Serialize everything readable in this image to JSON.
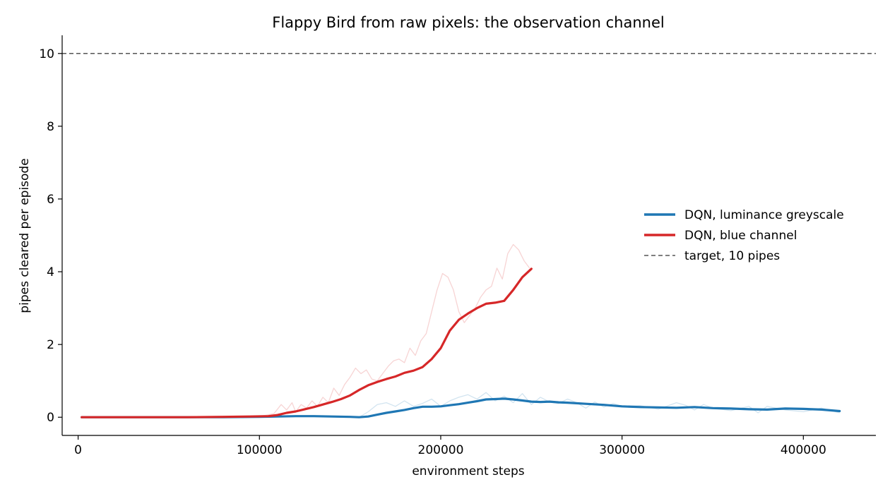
{
  "chart_data": {
    "type": "line",
    "title": "Flappy Bird from raw pixels: the observation channel",
    "xlabel": "environment steps",
    "ylabel": "pipes cleared per episode",
    "xlim": [
      -8800,
      440000
    ],
    "ylim": [
      -0.5,
      10.5
    ],
    "xticks": [
      0,
      100000,
      200000,
      300000,
      400000
    ],
    "yticks": [
      0,
      2,
      4,
      6,
      8,
      10
    ],
    "grid": false,
    "legend_position": "right",
    "legend": [
      "DQN, luminance greyscale",
      "DQN, blue channel",
      "target, 10 pipes"
    ],
    "reference_line": {
      "y": 10,
      "label": "target, 10 pipes",
      "color": "#555555"
    },
    "series": [
      {
        "name": "DQN, luminance greyscale",
        "color": "#1f77b4",
        "smoothed": {
          "x": [
            2000,
            20000,
            40000,
            60000,
            80000,
            100000,
            110000,
            120000,
            130000,
            140000,
            150000,
            155000,
            160000,
            165000,
            170000,
            175000,
            180000,
            185000,
            190000,
            195000,
            200000,
            205000,
            210000,
            215000,
            220000,
            225000,
            230000,
            235000,
            240000,
            245000,
            250000,
            255000,
            260000,
            265000,
            270000,
            280000,
            290000,
            300000,
            310000,
            320000,
            330000,
            340000,
            350000,
            360000,
            370000,
            380000,
            390000,
            400000,
            410000,
            420000
          ],
          "y": [
            0,
            0,
            0,
            0,
            0,
            0.01,
            0.02,
            0.03,
            0.03,
            0.02,
            0.01,
            0,
            0.02,
            0.07,
            0.12,
            0.16,
            0.2,
            0.25,
            0.29,
            0.29,
            0.3,
            0.33,
            0.36,
            0.4,
            0.44,
            0.49,
            0.5,
            0.51,
            0.49,
            0.46,
            0.43,
            0.42,
            0.43,
            0.41,
            0.4,
            0.37,
            0.34,
            0.3,
            0.28,
            0.27,
            0.26,
            0.28,
            0.25,
            0.24,
            0.22,
            0.21,
            0.24,
            0.23,
            0.21,
            0.17
          ]
        },
        "raw": {
          "x": [
            2000,
            50000,
            100000,
            120000,
            140000,
            155000,
            160000,
            165000,
            170000,
            175000,
            180000,
            185000,
            190000,
            195000,
            200000,
            205000,
            210000,
            215000,
            220000,
            225000,
            230000,
            235000,
            240000,
            245000,
            250000,
            255000,
            260000,
            265000,
            270000,
            275000,
            280000,
            285000,
            290000,
            295000,
            300000,
            310000,
            320000,
            330000,
            335000,
            340000,
            345000,
            350000,
            360000,
            370000,
            375000,
            380000,
            390000,
            400000,
            410000,
            420000
          ],
          "y": [
            0,
            0,
            0.01,
            0.04,
            0.03,
            0,
            0.15,
            0.35,
            0.4,
            0.3,
            0.45,
            0.3,
            0.38,
            0.5,
            0.3,
            0.45,
            0.55,
            0.62,
            0.5,
            0.68,
            0.45,
            0.58,
            0.4,
            0.65,
            0.35,
            0.55,
            0.42,
            0.38,
            0.5,
            0.4,
            0.25,
            0.42,
            0.28,
            0.38,
            0.3,
            0.32,
            0.22,
            0.4,
            0.33,
            0.2,
            0.35,
            0.25,
            0.18,
            0.3,
            0.12,
            0.3,
            0.2,
            0.15,
            0.25,
            0.12
          ]
        }
      },
      {
        "name": "DQN, blue channel",
        "color": "#d62728",
        "smoothed": {
          "x": [
            2000,
            20000,
            40000,
            60000,
            80000,
            95000,
            105000,
            110000,
            115000,
            120000,
            125000,
            130000,
            135000,
            140000,
            145000,
            150000,
            155000,
            160000,
            165000,
            170000,
            175000,
            180000,
            185000,
            190000,
            195000,
            200000,
            205000,
            210000,
            215000,
            220000,
            225000,
            230000,
            235000,
            240000,
            245000,
            250000
          ],
          "y": [
            0,
            0,
            0,
            0,
            0.01,
            0.02,
            0.03,
            0.06,
            0.12,
            0.16,
            0.22,
            0.28,
            0.35,
            0.42,
            0.5,
            0.6,
            0.75,
            0.88,
            0.97,
            1.05,
            1.12,
            1.22,
            1.28,
            1.38,
            1.6,
            1.9,
            2.38,
            2.68,
            2.85,
            3.0,
            3.12,
            3.15,
            3.2,
            3.5,
            3.85,
            4.08
          ]
        },
        "raw": {
          "x": [
            2000,
            50000,
            100000,
            108000,
            112000,
            115000,
            118000,
            120000,
            123000,
            126000,
            129000,
            132000,
            135000,
            138000,
            141000,
            144000,
            147000,
            150000,
            153000,
            156000,
            159000,
            162000,
            165000,
            168000,
            171000,
            174000,
            177000,
            180000,
            183000,
            186000,
            189000,
            192000,
            195000,
            198000,
            201000,
            204000,
            207000,
            210000,
            213000,
            216000,
            219000,
            222000,
            225000,
            228000,
            231000,
            234000,
            237000,
            240000,
            243000,
            246000,
            249000
          ],
          "y": [
            0,
            0,
            0.02,
            0.1,
            0.35,
            0.2,
            0.4,
            0.15,
            0.35,
            0.25,
            0.45,
            0.3,
            0.55,
            0.4,
            0.8,
            0.6,
            0.9,
            1.1,
            1.35,
            1.2,
            1.3,
            1.05,
            1.0,
            1.2,
            1.4,
            1.55,
            1.6,
            1.5,
            1.9,
            1.7,
            2.1,
            2.3,
            2.9,
            3.5,
            3.95,
            3.85,
            3.5,
            2.9,
            2.6,
            2.8,
            3.0,
            3.3,
            3.5,
            3.6,
            4.1,
            3.8,
            4.5,
            4.75,
            4.6,
            4.3,
            4.1
          ]
        }
      }
    ]
  }
}
